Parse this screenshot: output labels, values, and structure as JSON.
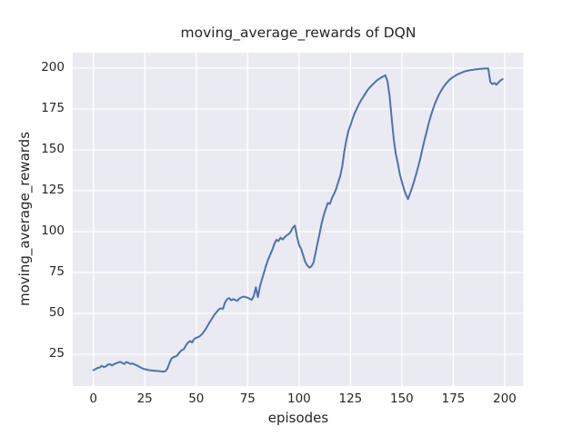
{
  "chart_data": {
    "type": "line",
    "title": "moving_average_rewards of DQN",
    "xlabel": "episodes",
    "ylabel": "moving_average_rewards",
    "x_ticks": [
      0,
      25,
      50,
      75,
      100,
      125,
      150,
      175,
      200
    ],
    "y_ticks": [
      25,
      50,
      75,
      100,
      125,
      150,
      175,
      200
    ],
    "xlim": [
      -10.04,
      209.06
    ],
    "ylim": [
      5.56,
      209.44
    ],
    "grid": true,
    "legend_position": "none",
    "colors": {
      "line": "#4C72B0",
      "plot_background": "#EAEAF2",
      "grid": "#FFFFFF",
      "text": "#262626",
      "figure_background": "#FFFFFF"
    },
    "series": [
      {
        "name": "moving_average_rewards",
        "color": "#4C72B0",
        "points": [
          [
            0,
            15.3
          ],
          [
            1,
            15.9
          ],
          [
            2,
            16.6
          ],
          [
            3,
            16.9
          ],
          [
            4,
            17.9
          ],
          [
            5,
            17.2
          ],
          [
            6,
            17.5
          ],
          [
            7,
            18.6
          ],
          [
            8,
            18.9
          ],
          [
            9,
            18.1
          ],
          [
            10,
            18.9
          ],
          [
            11,
            19.5
          ],
          [
            12,
            19.9
          ],
          [
            13,
            20.4
          ],
          [
            14,
            19.7
          ],
          [
            15,
            19.0
          ],
          [
            16,
            20.3
          ],
          [
            17,
            19.8
          ],
          [
            18,
            19.1
          ],
          [
            19,
            19.4
          ],
          [
            20,
            18.8
          ],
          [
            21,
            18.2
          ],
          [
            22,
            17.6
          ],
          [
            23,
            16.9
          ],
          [
            24,
            16.3
          ],
          [
            25,
            15.9
          ],
          [
            26,
            15.6
          ],
          [
            27,
            15.3
          ],
          [
            28,
            15.1
          ],
          [
            29,
            15.0
          ],
          [
            30,
            14.9
          ],
          [
            31,
            14.8
          ],
          [
            32,
            14.7
          ],
          [
            33,
            14.5
          ],
          [
            34,
            14.4
          ],
          [
            35,
            14.6
          ],
          [
            36,
            16.3
          ],
          [
            37,
            19.6
          ],
          [
            38,
            22.4
          ],
          [
            39,
            23.3
          ],
          [
            40,
            23.6
          ],
          [
            41,
            24.6
          ],
          [
            42,
            26.4
          ],
          [
            43,
            27.5
          ],
          [
            44,
            28.1
          ],
          [
            45,
            30.5
          ],
          [
            46,
            32.1
          ],
          [
            47,
            33.1
          ],
          [
            48,
            32.2
          ],
          [
            49,
            34.3
          ],
          [
            50,
            35.1
          ],
          [
            51,
            35.5
          ],
          [
            52,
            36.3
          ],
          [
            53,
            37.6
          ],
          [
            54,
            39.2
          ],
          [
            55,
            41.2
          ],
          [
            56,
            43.5
          ],
          [
            57,
            45.5
          ],
          [
            58,
            47.5
          ],
          [
            59,
            49.5
          ],
          [
            60,
            50.9
          ],
          [
            61,
            52.5
          ],
          [
            62,
            53.1
          ],
          [
            63,
            52.7
          ],
          [
            64,
            56.6
          ],
          [
            65,
            58.6
          ],
          [
            66,
            59.4
          ],
          [
            67,
            58.0
          ],
          [
            68,
            58.7
          ],
          [
            69,
            58.1
          ],
          [
            70,
            57.7
          ],
          [
            71,
            59.1
          ],
          [
            72,
            59.8
          ],
          [
            73,
            60.3
          ],
          [
            74,
            59.9
          ],
          [
            75,
            59.6
          ],
          [
            76,
            58.9
          ],
          [
            77,
            58.3
          ],
          [
            78,
            60.6
          ],
          [
            79,
            66.0
          ],
          [
            80,
            59.9
          ],
          [
            81,
            66.6
          ],
          [
            82,
            71.1
          ],
          [
            83,
            75.1
          ],
          [
            84,
            79.5
          ],
          [
            85,
            83.0
          ],
          [
            86,
            86.0
          ],
          [
            87,
            89.0
          ],
          [
            88,
            92.5
          ],
          [
            89,
            95.0
          ],
          [
            90,
            94.2
          ],
          [
            91,
            96.3
          ],
          [
            92,
            95.2
          ],
          [
            93,
            96.5
          ],
          [
            94,
            97.8
          ],
          [
            95,
            98.5
          ],
          [
            96,
            100.0
          ],
          [
            97,
            102.5
          ],
          [
            98,
            103.7
          ],
          [
            99,
            97.0
          ],
          [
            100,
            91.7
          ],
          [
            101,
            89.5
          ],
          [
            102,
            85.5
          ],
          [
            103,
            81.5
          ],
          [
            104,
            79.3
          ],
          [
            105,
            78.0
          ],
          [
            106,
            78.8
          ],
          [
            107,
            81.0
          ],
          [
            108,
            87.0
          ],
          [
            109,
            93.0
          ],
          [
            110,
            99.0
          ],
          [
            111,
            105.0
          ],
          [
            112,
            110.0
          ],
          [
            113,
            114.0
          ],
          [
            114,
            117.5
          ],
          [
            115,
            117.0
          ],
          [
            116,
            120.5
          ],
          [
            117,
            123.0
          ],
          [
            118,
            126.0
          ],
          [
            119,
            130.0
          ],
          [
            120,
            134.0
          ],
          [
            121,
            140.0
          ],
          [
            122,
            149.0
          ],
          [
            123,
            156.0
          ],
          [
            124,
            161.5
          ],
          [
            125,
            165.0
          ],
          [
            126,
            169.0
          ],
          [
            127,
            172.3
          ],
          [
            128,
            175.0
          ],
          [
            129,
            177.6
          ],
          [
            130,
            180.0
          ],
          [
            131,
            182.0
          ],
          [
            132,
            184.0
          ],
          [
            133,
            186.0
          ],
          [
            134,
            187.6
          ],
          [
            135,
            189.0
          ],
          [
            136,
            190.3
          ],
          [
            137,
            191.5
          ],
          [
            138,
            192.6
          ],
          [
            139,
            193.5
          ],
          [
            140,
            194.3
          ],
          [
            141,
            195.0
          ],
          [
            142,
            195.6
          ],
          [
            143,
            192.0
          ],
          [
            144,
            183.0
          ],
          [
            145,
            170.0
          ],
          [
            146,
            157.0
          ],
          [
            147,
            148.0
          ],
          [
            148,
            142.0
          ],
          [
            149,
            135.0
          ],
          [
            150,
            130.5
          ],
          [
            151,
            126.0
          ],
          [
            152,
            122.5
          ],
          [
            153,
            120.0
          ],
          [
            154,
            123.5
          ],
          [
            155,
            127.0
          ],
          [
            156,
            131.0
          ],
          [
            157,
            135.5
          ],
          [
            158,
            140.0
          ],
          [
            159,
            145.0
          ],
          [
            160,
            150.5
          ],
          [
            161,
            156.0
          ],
          [
            162,
            161.0
          ],
          [
            163,
            166.0
          ],
          [
            164,
            170.5
          ],
          [
            165,
            174.5
          ],
          [
            166,
            178.0
          ],
          [
            167,
            181.0
          ],
          [
            168,
            183.7
          ],
          [
            169,
            186.0
          ],
          [
            170,
            188.0
          ],
          [
            171,
            189.8
          ],
          [
            172,
            191.3
          ],
          [
            173,
            192.6
          ],
          [
            174,
            193.7
          ],
          [
            175,
            194.6
          ],
          [
            176,
            195.4
          ],
          [
            177,
            196.1
          ],
          [
            178,
            196.7
          ],
          [
            179,
            197.2
          ],
          [
            180,
            197.7
          ],
          [
            181,
            198.1
          ],
          [
            182,
            198.4
          ],
          [
            183,
            198.7
          ],
          [
            184,
            198.9
          ],
          [
            185,
            199.1
          ],
          [
            186,
            199.3
          ],
          [
            187,
            199.4
          ],
          [
            188,
            199.6
          ],
          [
            189,
            199.6
          ],
          [
            190,
            199.7
          ],
          [
            191,
            199.8
          ],
          [
            192,
            199.8
          ],
          [
            193,
            191.5
          ],
          [
            194,
            190.2
          ],
          [
            195,
            190.9
          ],
          [
            196,
            189.9
          ],
          [
            197,
            191.3
          ],
          [
            198,
            192.5
          ],
          [
            199,
            193.3
          ]
        ]
      }
    ]
  }
}
